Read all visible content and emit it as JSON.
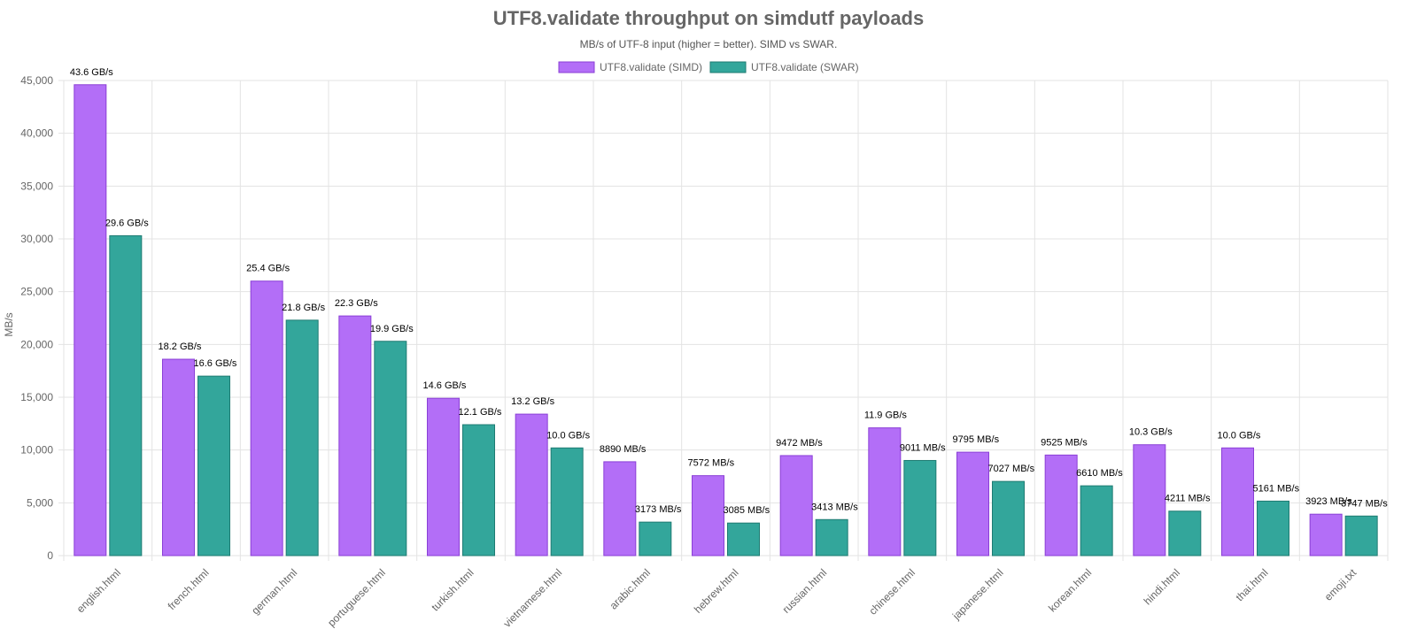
{
  "chart_data": {
    "type": "bar",
    "title": "UTF8.validate throughput on simdutf payloads",
    "subtitle": "MB/s of UTF-8 input (higher = better). SIMD vs SWAR.",
    "ylabel": "MB/s",
    "xlabel": "",
    "ylim": [
      0,
      45000
    ],
    "y_ticks": [
      0,
      5000,
      10000,
      15000,
      20000,
      25000,
      30000,
      35000,
      40000,
      45000
    ],
    "y_tick_labels": [
      "0",
      "5,000",
      "10,000",
      "15,000",
      "20,000",
      "25,000",
      "30,000",
      "35,000",
      "40,000",
      "45,000"
    ],
    "grid": true,
    "legend_position": "top",
    "categories": [
      "english.html",
      "french.html",
      "german.html",
      "portuguese.html",
      "turkish.html",
      "vietnamese.html",
      "arabic.html",
      "hebrew.html",
      "russian.html",
      "chinese.html",
      "japanese.html",
      "korean.html",
      "hindi.html",
      "thai.html",
      "emoji.txt"
    ],
    "series": [
      {
        "name": "UTF8.validate (SIMD)",
        "color": "#b36ef7",
        "border_color": "#8a3fd6",
        "values": [
          44600,
          18600,
          26000,
          22700,
          14900,
          13400,
          8890,
          7572,
          9472,
          12100,
          9795,
          9525,
          10500,
          10200,
          3923
        ],
        "labels": [
          "43.6 GB/s",
          "18.2 GB/s",
          "25.4 GB/s",
          "22.3 GB/s",
          "14.6 GB/s",
          "13.2 GB/s",
          "8890 MB/s",
          "7572 MB/s",
          "9472 MB/s",
          "11.9 GB/s",
          "9795 MB/s",
          "9525 MB/s",
          "10.3 GB/s",
          "10.0 GB/s",
          "3923 MB/s"
        ]
      },
      {
        "name": "UTF8.validate (SWAR)",
        "color": "#33a69b",
        "border_color": "#1e7b72",
        "values": [
          30300,
          17000,
          22300,
          20300,
          12400,
          10200,
          3173,
          3085,
          3413,
          9011,
          7027,
          6610,
          4211,
          5161,
          3747
        ],
        "labels": [
          "29.6 GB/s",
          "16.6 GB/s",
          "21.8 GB/s",
          "19.9 GB/s",
          "12.1 GB/s",
          "10.0 GB/s",
          "3173 MB/s",
          "3085 MB/s",
          "3413 MB/s",
          "9011 MB/s",
          "7027 MB/s",
          "6610 MB/s",
          "4211 MB/s",
          "5161 MB/s",
          "3747 MB/s"
        ]
      }
    ]
  }
}
